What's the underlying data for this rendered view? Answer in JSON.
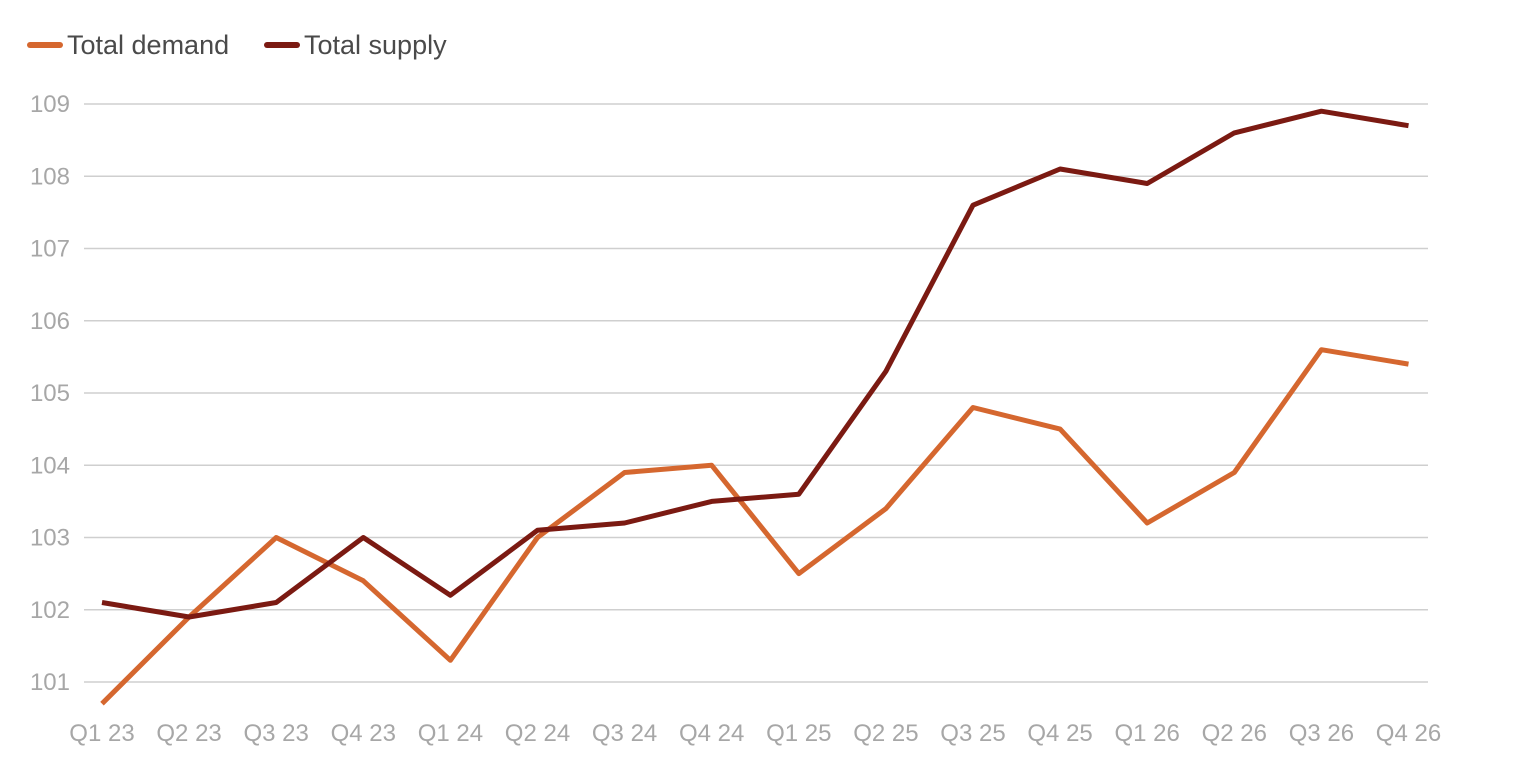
{
  "chart_data": {
    "type": "line",
    "categories": [
      "Q1 23",
      "Q2 23",
      "Q3 23",
      "Q4 23",
      "Q1 24",
      "Q2 24",
      "Q3 24",
      "Q4 24",
      "Q1 25",
      "Q2 25",
      "Q3 25",
      "Q4 25",
      "Q1 26",
      "Q2 26",
      "Q3 26",
      "Q4 26"
    ],
    "series": [
      {
        "name": "Total demand",
        "color": "#d5672f",
        "values": [
          100.7,
          101.9,
          103.0,
          102.4,
          101.3,
          103.0,
          103.9,
          104.0,
          102.5,
          103.4,
          104.8,
          104.5,
          103.2,
          103.9,
          105.6,
          105.4
        ]
      },
      {
        "name": "Total supply",
        "color": "#7b1a12",
        "values": [
          102.1,
          101.9,
          102.1,
          103.0,
          102.2,
          103.1,
          103.2,
          103.5,
          103.6,
          105.3,
          107.6,
          108.1,
          107.9,
          108.6,
          108.9,
          108.7
        ]
      }
    ],
    "yticks": [
      "101",
      "102",
      "103",
      "104",
      "105",
      "106",
      "107",
      "108",
      "109"
    ],
    "ylim": [
      101,
      109
    ],
    "grid": true,
    "legend_position": "top-left",
    "title": "",
    "xlabel": "",
    "ylabel": ""
  }
}
